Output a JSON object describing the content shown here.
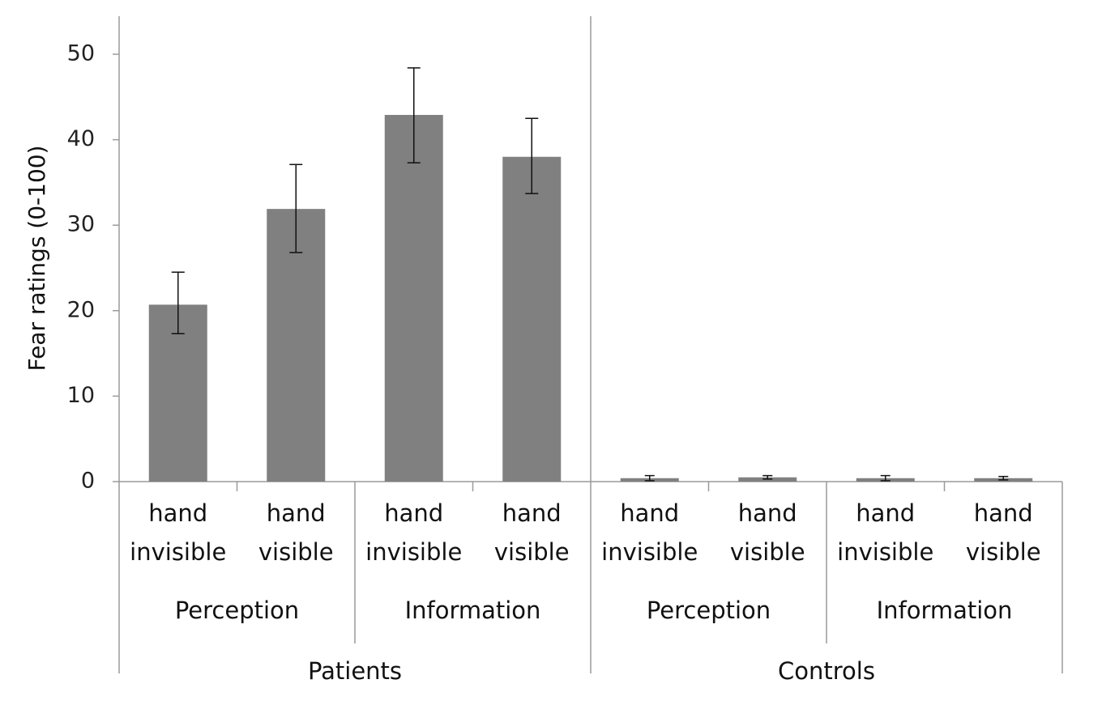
{
  "chart_data": {
    "type": "bar",
    "title": "",
    "xlabel": "",
    "ylabel": "Fear ratings (0-100)",
    "ylim": [
      0,
      50
    ],
    "yticks": [
      0,
      10,
      20,
      30,
      40,
      50
    ],
    "grid": false,
    "legend": "none",
    "bar_color": "#808080",
    "categories": [
      {
        "line1": "hand",
        "line2": "invisible",
        "condition": "Perception",
        "group": "Patients"
      },
      {
        "line1": "hand",
        "line2": "visible",
        "condition": "Perception",
        "group": "Patients"
      },
      {
        "line1": "hand",
        "line2": "invisible",
        "condition": "Information",
        "group": "Patients"
      },
      {
        "line1": "hand",
        "line2": "visible",
        "condition": "Information",
        "group": "Patients"
      },
      {
        "line1": "hand",
        "line2": "invisible",
        "condition": "Perception",
        "group": "Controls"
      },
      {
        "line1": "hand",
        "line2": "visible",
        "condition": "Perception",
        "group": "Controls"
      },
      {
        "line1": "hand",
        "line2": "invisible",
        "condition": "Information",
        "group": "Controls"
      },
      {
        "line1": "hand",
        "line2": "visible",
        "condition": "Information",
        "group": "Controls"
      }
    ],
    "values": [
      20.7,
      31.9,
      42.9,
      38.0,
      0.4,
      0.5,
      0.4,
      0.4
    ],
    "error_bars": [
      [
        17.3,
        24.5
      ],
      [
        26.8,
        37.1
      ],
      [
        37.3,
        48.4
      ],
      [
        33.7,
        42.5
      ],
      [
        0.1,
        0.7
      ],
      [
        0.3,
        0.7
      ],
      [
        0.1,
        0.7
      ],
      [
        0.2,
        0.6
      ]
    ],
    "condition_groups": [
      {
        "label": "Perception",
        "span": [
          0,
          1
        ]
      },
      {
        "label": "Information",
        "span": [
          2,
          3
        ]
      },
      {
        "label": "Perception",
        "span": [
          4,
          5
        ]
      },
      {
        "label": "Information",
        "span": [
          6,
          7
        ]
      }
    ],
    "participant_groups": [
      {
        "label": "Patients",
        "span": [
          0,
          3
        ]
      },
      {
        "label": "Controls",
        "span": [
          4,
          7
        ]
      }
    ]
  }
}
